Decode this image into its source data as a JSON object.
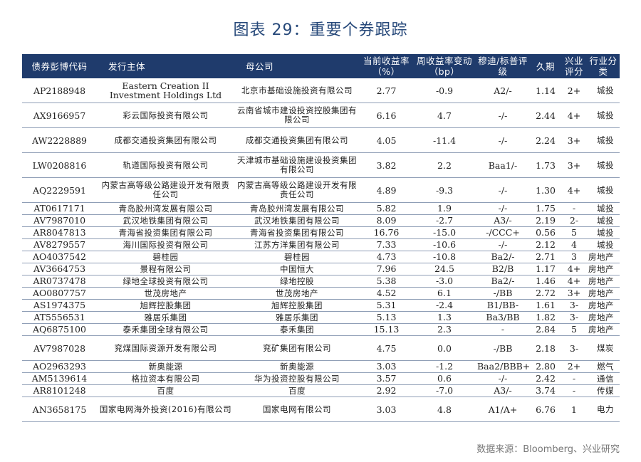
{
  "title": "图表 29：重要个券跟踪",
  "headers": {
    "code": "债券彭博代码",
    "issuer": "发行主体",
    "parent": "母公司",
    "ytm": "当前收益率（%）",
    "ytm_change": "周收益率变动（bp）",
    "rating": "穆迪/标普评级",
    "duration": "久期",
    "industry_score": "兴业评分",
    "sector": "行业分类"
  },
  "rows": [
    {
      "code": "AP2188948",
      "issuer": "Eastern Creation II Investment Holdings Ltd",
      "parent": "北京市基础设施投资有限公司",
      "ytm": "2.77",
      "chg": "-0.9",
      "rating": "A2/-",
      "duration": "1.14",
      "score": "2+",
      "sector": "城投"
    },
    {
      "code": "AX9166957",
      "issuer": "彩云国际投资有限公司",
      "parent": "云南省城市建设投资控股集团有限公司",
      "ytm": "6.16",
      "chg": "4.7",
      "rating": "-/-",
      "duration": "2.44",
      "score": "4+",
      "sector": "城投"
    },
    {
      "code": "AW2228889",
      "issuer": "成都交通投资集团有限公司",
      "parent": "成都交通投资集团有限公司",
      "ytm": "4.05",
      "chg": "-11.4",
      "rating": "-/-",
      "duration": "2.24",
      "score": "3+",
      "sector": "城投"
    },
    {
      "code": "LW0208816",
      "issuer": "轨道国际投资有限公司",
      "parent": "天津城市基础设施建设投资集团有限公司",
      "ytm": "3.82",
      "chg": "2.2",
      "rating": "Baa1/-",
      "duration": "1.73",
      "score": "3+",
      "sector": "城投"
    },
    {
      "code": "AQ2229591",
      "issuer": "内蒙古高等级公路建设开发有限责任公司",
      "parent": "内蒙古高等级公路建设开发有限责任公司",
      "ytm": "4.89",
      "chg": "-9.3",
      "rating": "-/-",
      "duration": "1.30",
      "score": "4+",
      "sector": "城投"
    },
    {
      "code": "AT0617171",
      "issuer": "青岛胶州湾发展有限公司",
      "parent": "青岛胶州湾发展有限公司",
      "ytm": "5.82",
      "chg": "1.9",
      "rating": "-/-",
      "duration": "1.75",
      "score": "-",
      "sector": "城投"
    },
    {
      "code": "AV7987010",
      "issuer": "武汉地铁集团有限公司",
      "parent": "武汉地铁集团有限公司",
      "ytm": "8.09",
      "chg": "-2.7",
      "rating": "A3/-",
      "duration": "2.19",
      "score": "2-",
      "sector": "城投"
    },
    {
      "code": "AR8047813",
      "issuer": "青海省投资集团有限公司",
      "parent": "青海省投资集团有限公司",
      "ytm": "16.76",
      "chg": "-15.0",
      "rating": "-/CCC+",
      "duration": "0.56",
      "score": "5",
      "sector": "城投"
    },
    {
      "code": "AV8279557",
      "issuer": "海川国际投资有限公司",
      "parent": "江苏方洋集团有限公司",
      "ytm": "7.33",
      "chg": "-10.6",
      "rating": "-/-",
      "duration": "2.12",
      "score": "4",
      "sector": "城投"
    },
    {
      "code": "AO4037542",
      "issuer": "碧桂园",
      "parent": "碧桂园",
      "ytm": "4.73",
      "chg": "-10.8",
      "rating": "Ba2/-",
      "duration": "2.71",
      "score": "3",
      "sector": "房地产"
    },
    {
      "code": "AV3664753",
      "issuer": "景程有限公司",
      "parent": "中国恒大",
      "ytm": "7.96",
      "chg": "24.5",
      "rating": "B2/B",
      "duration": "1.17",
      "score": "4+",
      "sector": "房地产"
    },
    {
      "code": "AR0737478",
      "issuer": "绿地全球投资有限公司",
      "parent": "绿地控股",
      "ytm": "5.38",
      "chg": "-3.0",
      "rating": "Ba2/-",
      "duration": "1.46",
      "score": "4+",
      "sector": "房地产"
    },
    {
      "code": "AO0807757",
      "issuer": "世茂房地产",
      "parent": "世茂房地产",
      "ytm": "4.52",
      "chg": "6.1",
      "rating": "-/BB",
      "duration": "2.72",
      "score": "3+",
      "sector": "房地产"
    },
    {
      "code": "AS1974375",
      "issuer": "旭辉控股集团",
      "parent": "旭辉控股集团",
      "ytm": "5.31",
      "chg": "-2.4",
      "rating": "B1/BB-",
      "duration": "1.61",
      "score": "3-",
      "sector": "房地产"
    },
    {
      "code": "AT5556531",
      "issuer": "雅居乐集团",
      "parent": "雅居乐集团",
      "ytm": "5.13",
      "chg": "1.3",
      "rating": "Ba3/BB",
      "duration": "1.82",
      "score": "3-",
      "sector": "房地产"
    },
    {
      "code": "AQ6875100",
      "issuer": "泰禾集团全球有限公司",
      "parent": "泰禾集团",
      "ytm": "15.13",
      "chg": "2.3",
      "rating": "-",
      "duration": "2.84",
      "score": "5",
      "sector": "房地产"
    },
    {
      "code": "AV7987028",
      "issuer": "兖煤国际资源开发有限公司",
      "parent": "兖矿集团有限公司",
      "ytm": "4.75",
      "chg": "0.0",
      "rating": "-/BB",
      "duration": "2.18",
      "score": "3-",
      "sector": "煤炭"
    },
    {
      "code": "AO2963293",
      "issuer": "新奥能源",
      "parent": "新奥能源",
      "ytm": "3.03",
      "chg": "-1.2",
      "rating": "Baa2/BBB+",
      "duration": "2.80",
      "score": "2+",
      "sector": "燃气"
    },
    {
      "code": "AM5139614",
      "issuer": "格拉资本有限公司",
      "parent": "华为投资控股有限公司",
      "ytm": "3.57",
      "chg": "0.6",
      "rating": "-/-",
      "duration": "2.42",
      "score": "-",
      "sector": "通信"
    },
    {
      "code": "AR8101248",
      "issuer": "百度",
      "parent": "百度",
      "ytm": "2.92",
      "chg": "-7.0",
      "rating": "A3/-",
      "duration": "3.74",
      "score": "-",
      "sector": "传媒"
    },
    {
      "code": "AN3658175",
      "issuer": "国家电网海外投资(2016)有限公司",
      "parent": "国家电网有限公司",
      "ytm": "3.03",
      "chg": "4.8",
      "rating": "A1/A+",
      "duration": "6.76",
      "score": "1",
      "sector": "电力"
    }
  ],
  "source": "数据来源：Bloomberg、兴业研究",
  "colors": {
    "header_bg": "#1f3b6c",
    "title": "#27497a"
  }
}
